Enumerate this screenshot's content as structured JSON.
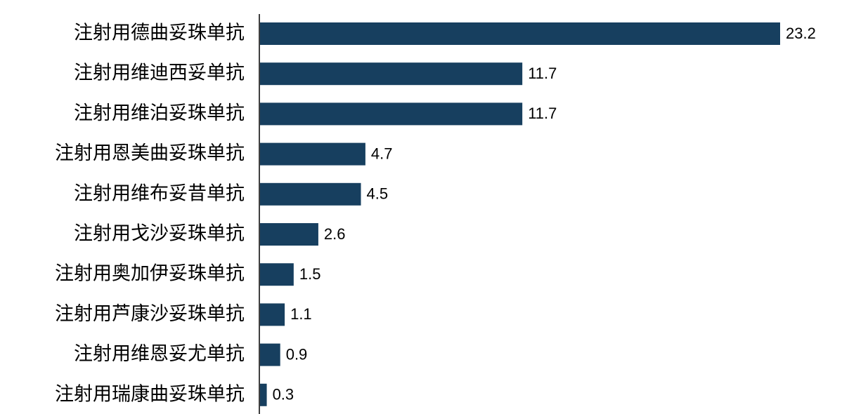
{
  "chart_data": {
    "type": "hbar",
    "categories": [
      "注射用德曲妥珠单抗",
      "注射用维迪西妥单抗",
      "注射用维泊妥珠单抗",
      "注射用恩美曲妥珠单抗",
      "注射用维布妥昔单抗",
      "注射用戈沙妥珠单抗",
      "注射用奥加伊妥珠单抗",
      "注射用芦康沙妥珠单抗",
      "注射用维恩妥尤单抗",
      "注射用瑞康曲妥珠单抗"
    ],
    "values": [
      23.2,
      11.7,
      11.7,
      4.7,
      4.5,
      2.6,
      1.5,
      1.1,
      0.9,
      0.3
    ],
    "color": "#173f5f"
  }
}
